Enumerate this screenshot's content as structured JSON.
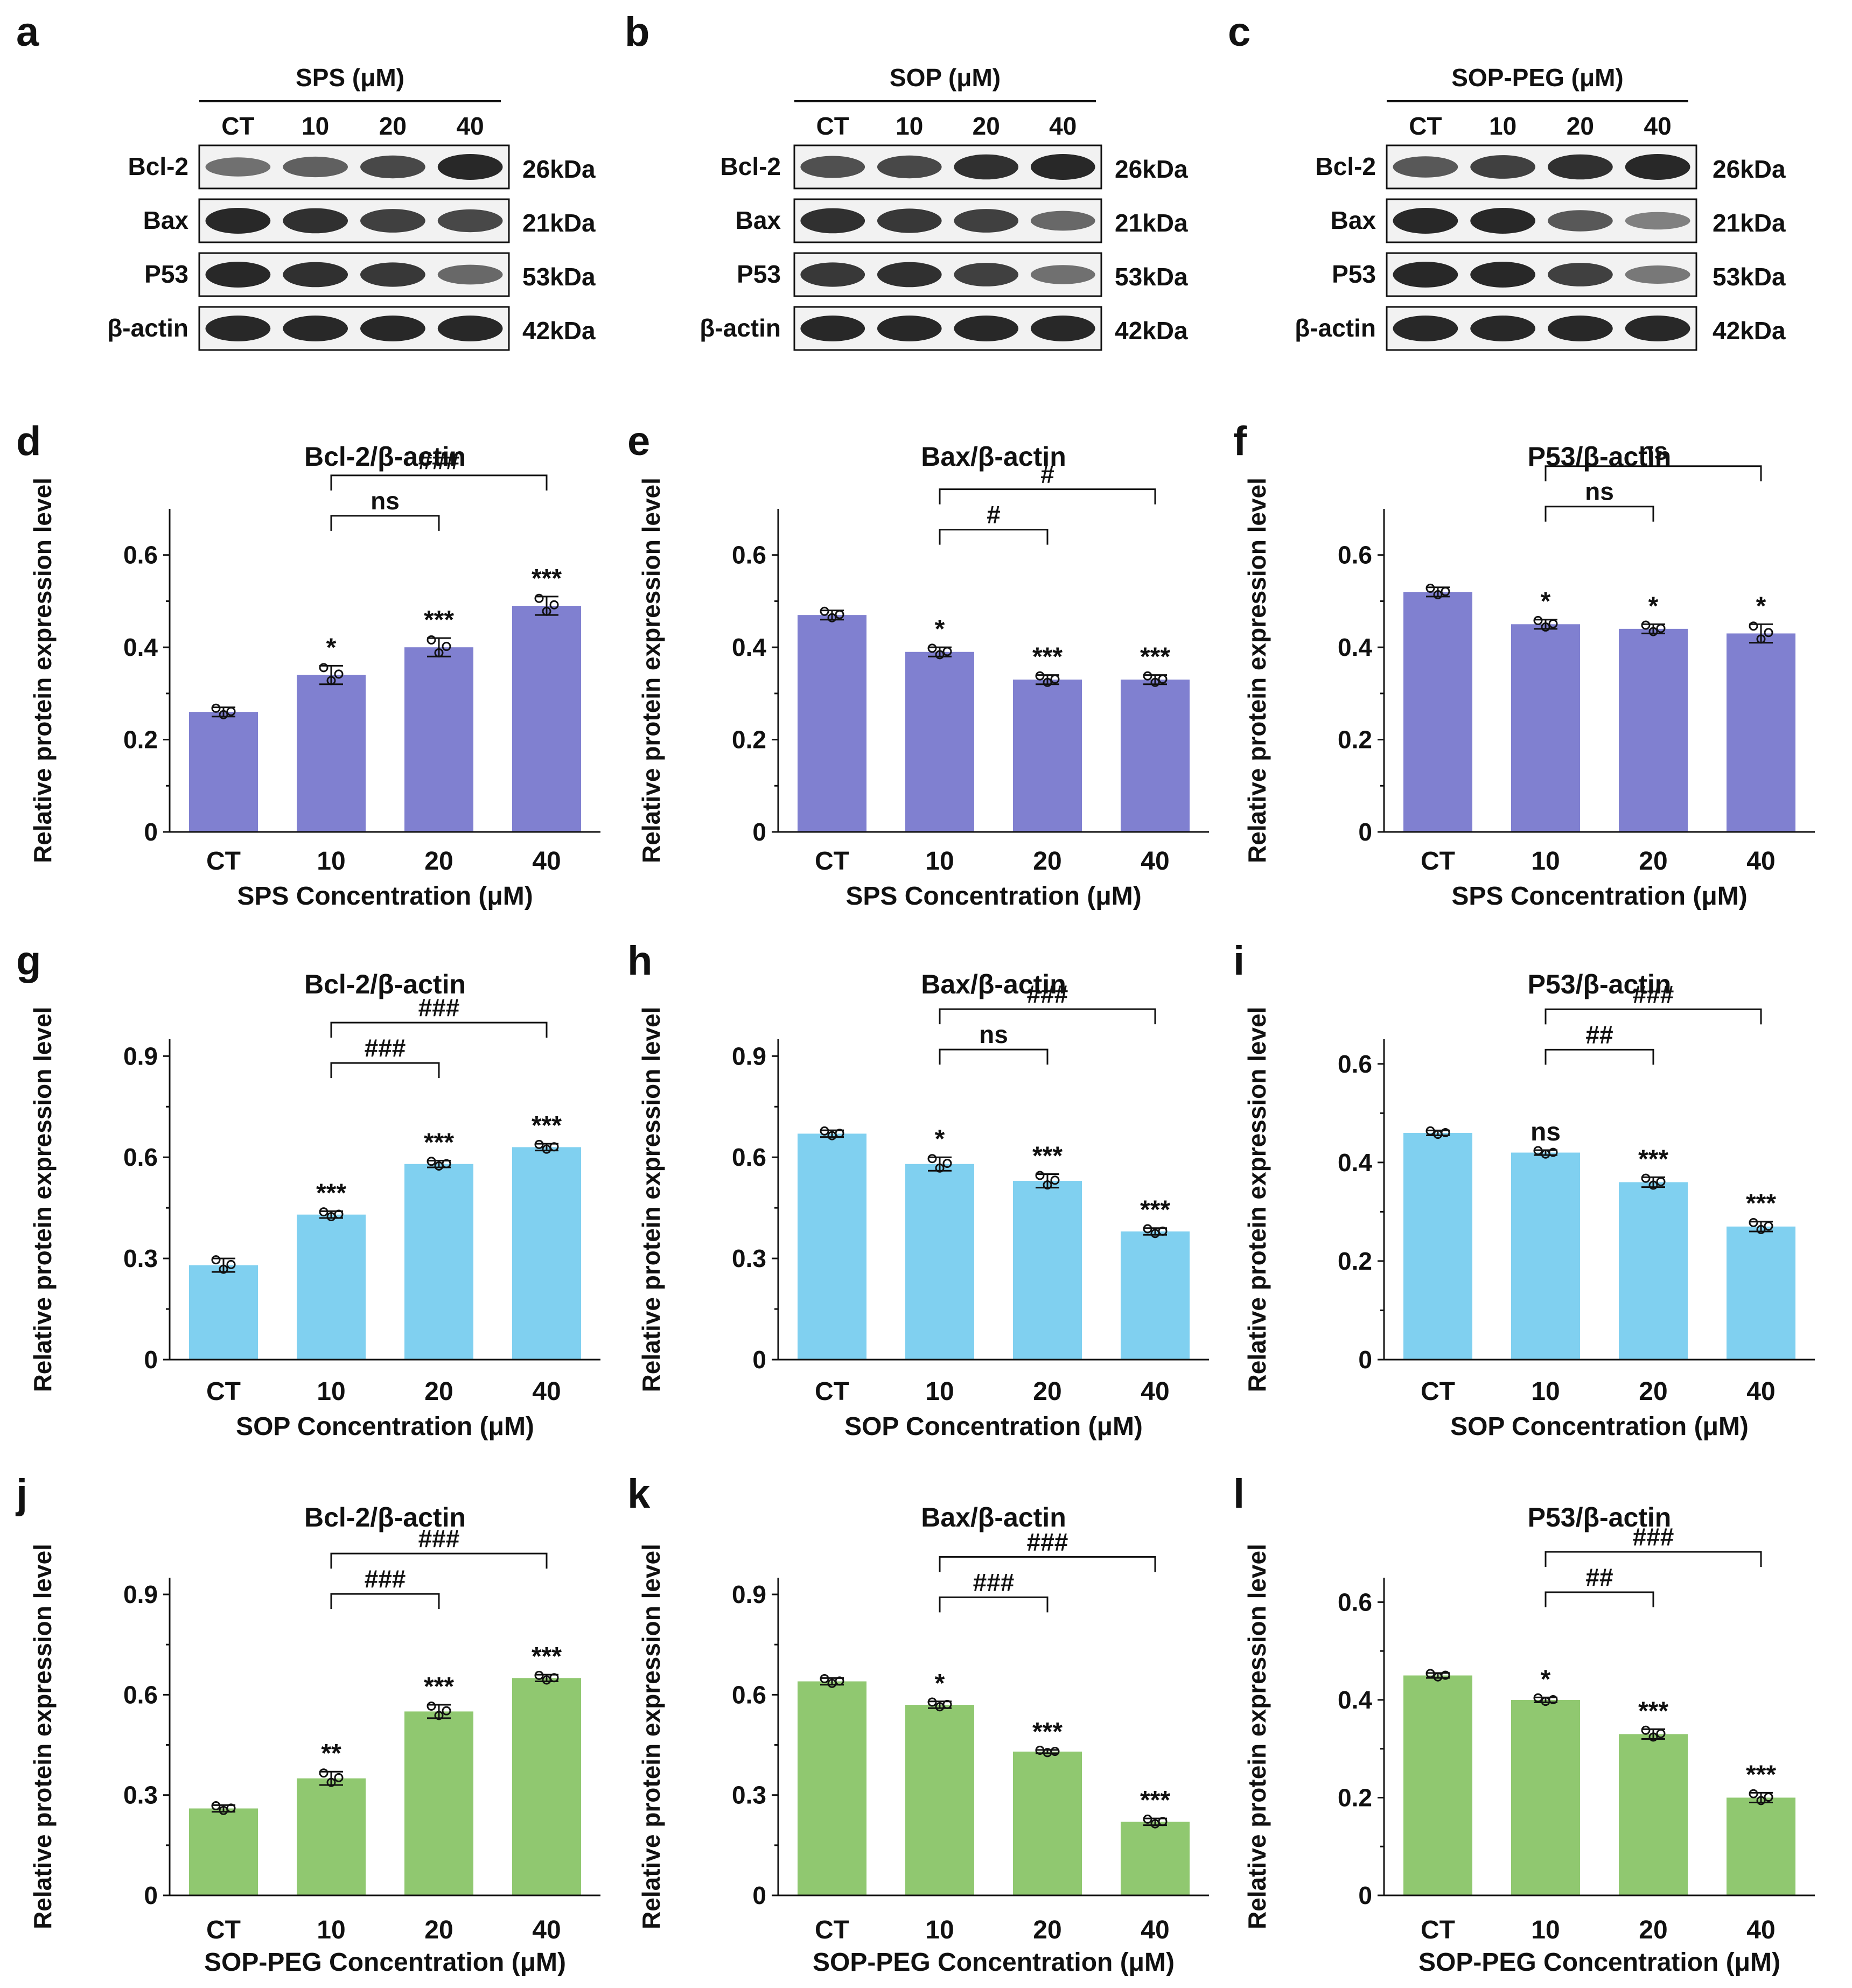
{
  "blot_panels": [
    {
      "letter": "a",
      "title": "SPS (μM)",
      "lanes": [
        "CT",
        "10",
        "20",
        "40"
      ],
      "proteins": [
        "Bcl-2",
        "Bax",
        "P53",
        "β-actin"
      ],
      "sizes": [
        "26kDa",
        "21kDa",
        "53kDa",
        "42kDa"
      ],
      "band_intensity": [
        [
          0.55,
          0.65,
          0.8,
          1.0
        ],
        [
          1.0,
          0.95,
          0.85,
          0.8
        ],
        [
          1.0,
          0.95,
          0.9,
          0.6
        ],
        [
          1.0,
          1.0,
          1.0,
          1.0
        ]
      ]
    },
    {
      "letter": "b",
      "title": "SOP (μM)",
      "lanes": [
        "CT",
        "10",
        "20",
        "40"
      ],
      "proteins": [
        "Bcl-2",
        "Bax",
        "P53",
        "β-actin"
      ],
      "sizes": [
        "26kDa",
        "21kDa",
        "53kDa",
        "42kDa"
      ],
      "band_intensity": [
        [
          0.75,
          0.8,
          0.95,
          1.0
        ],
        [
          0.95,
          0.9,
          0.85,
          0.6
        ],
        [
          0.9,
          0.95,
          0.85,
          0.55
        ],
        [
          1.0,
          1.0,
          1.0,
          1.0
        ]
      ]
    },
    {
      "letter": "c",
      "title": "SOP-PEG (μM)",
      "lanes": [
        "CT",
        "10",
        "20",
        "40"
      ],
      "proteins": [
        "Bcl-2",
        "Bax",
        "P53",
        "β-actin"
      ],
      "sizes": [
        "26kDa",
        "21kDa",
        "53kDa",
        "42kDa"
      ],
      "band_intensity": [
        [
          0.7,
          0.85,
          0.95,
          1.0
        ],
        [
          1.0,
          1.0,
          0.7,
          0.45
        ],
        [
          1.0,
          1.0,
          0.85,
          0.5
        ],
        [
          1.0,
          1.0,
          1.0,
          1.0
        ]
      ]
    }
  ],
  "colors": {
    "SPS": "#8080d0",
    "SOP": "#80d0f0",
    "SOP-PEG": "#90c870"
  },
  "chart_data": [
    {
      "letter": "d",
      "type": "bar",
      "title": "Bcl-2/β-actin",
      "color_key": "SPS",
      "categories": [
        "CT",
        "10",
        "20",
        "40"
      ],
      "values": [
        0.26,
        0.34,
        0.4,
        0.49
      ],
      "errors": [
        0.01,
        0.02,
        0.02,
        0.02
      ],
      "ylim": [
        0,
        0.7
      ],
      "yticks": [
        "0",
        "0.2",
        "0.4",
        "0.6"
      ],
      "ytick_values": [
        0,
        0.2,
        0.4,
        0.6
      ],
      "xlabel": "SPS Concentration (μM)",
      "ylabel": "Relative protein expression level",
      "bar_marks": [
        "",
        "*",
        "***",
        "***"
      ],
      "brackets": [
        {
          "from": 1,
          "to": 2,
          "label": "ns",
          "level": 0
        },
        {
          "from": 1,
          "to": 3,
          "label": "###",
          "level": 1
        }
      ]
    },
    {
      "letter": "e",
      "type": "bar",
      "title": "Bax/β-actin",
      "color_key": "SPS",
      "categories": [
        "CT",
        "10",
        "20",
        "40"
      ],
      "values": [
        0.47,
        0.39,
        0.33,
        0.33
      ],
      "errors": [
        0.01,
        0.01,
        0.01,
        0.01
      ],
      "ylim": [
        0,
        0.7
      ],
      "yticks": [
        "0",
        "0.2",
        "0.4",
        "0.6"
      ],
      "ytick_values": [
        0,
        0.2,
        0.4,
        0.6
      ],
      "xlabel": "SPS Concentration (μM)",
      "ylabel": "Relative protein expression level",
      "bar_marks": [
        "",
        "*",
        "***",
        "***"
      ],
      "brackets": [
        {
          "from": 1,
          "to": 2,
          "label": "#",
          "level": 0
        },
        {
          "from": 1,
          "to": 3,
          "label": "#",
          "level": 1
        }
      ]
    },
    {
      "letter": "f",
      "type": "bar",
      "title": "P53/β-actin",
      "color_key": "SPS",
      "categories": [
        "CT",
        "10",
        "20",
        "40"
      ],
      "values": [
        0.52,
        0.45,
        0.44,
        0.43
      ],
      "errors": [
        0.01,
        0.01,
        0.01,
        0.02
      ],
      "ylim": [
        0,
        0.7
      ],
      "yticks": [
        "0",
        "0.2",
        "0.4",
        "0.6"
      ],
      "ytick_values": [
        0,
        0.2,
        0.4,
        0.6
      ],
      "xlabel": "SPS Concentration (μM)",
      "ylabel": "Relative protein expression level",
      "bar_marks": [
        "",
        "*",
        "*",
        "*"
      ],
      "brackets": [
        {
          "from": 1,
          "to": 2,
          "label": "ns",
          "level": 0
        },
        {
          "from": 1,
          "to": 3,
          "label": "ns",
          "level": 1
        }
      ]
    },
    {
      "letter": "g",
      "type": "bar",
      "title": "Bcl-2/β-actin",
      "color_key": "SOP",
      "categories": [
        "CT",
        "10",
        "20",
        "40"
      ],
      "values": [
        0.28,
        0.43,
        0.58,
        0.63
      ],
      "errors": [
        0.02,
        0.01,
        0.01,
        0.01
      ],
      "ylim": [
        0,
        0.95
      ],
      "yticks": [
        "0",
        "0.3",
        "0.6",
        "0.9"
      ],
      "ytick_values": [
        0,
        0.3,
        0.6,
        0.9
      ],
      "xlabel": "SOP Concentration (μM)",
      "ylabel": "Relative protein expression level",
      "bar_marks": [
        "",
        "***",
        "***",
        "***"
      ],
      "brackets": [
        {
          "from": 1,
          "to": 2,
          "label": "###",
          "level": 0
        },
        {
          "from": 1,
          "to": 3,
          "label": "###",
          "level": 1
        }
      ]
    },
    {
      "letter": "h",
      "type": "bar",
      "title": "Bax/β-actin",
      "color_key": "SOP",
      "categories": [
        "CT",
        "10",
        "20",
        "40"
      ],
      "values": [
        0.67,
        0.58,
        0.53,
        0.38
      ],
      "errors": [
        0.01,
        0.02,
        0.02,
        0.01
      ],
      "ylim": [
        0,
        0.95
      ],
      "yticks": [
        "0",
        "0.3",
        "0.6",
        "0.9"
      ],
      "ytick_values": [
        0,
        0.3,
        0.6,
        0.9
      ],
      "xlabel": "SOP Concentration (μM)",
      "ylabel": "Relative protein expression level",
      "bar_marks": [
        "",
        "*",
        "***",
        "***"
      ],
      "brackets": [
        {
          "from": 1,
          "to": 2,
          "label": "ns",
          "level": 0
        },
        {
          "from": 1,
          "to": 3,
          "label": "###",
          "level": 1
        }
      ]
    },
    {
      "letter": "i",
      "type": "bar",
      "title": "P53/β-actin",
      "color_key": "SOP",
      "categories": [
        "CT",
        "10",
        "20",
        "40"
      ],
      "values": [
        0.46,
        0.42,
        0.36,
        0.27
      ],
      "errors": [
        0.005,
        0.005,
        0.01,
        0.01
      ],
      "ylim": [
        0,
        0.65
      ],
      "yticks": [
        "0",
        "0.2",
        "0.4",
        "0.6"
      ],
      "ytick_values": [
        0,
        0.2,
        0.4,
        0.6
      ],
      "xlabel": "SOP Concentration (μM)",
      "ylabel": "Relative protein expression level",
      "bar_marks": [
        "",
        "ns",
        "***",
        "***"
      ],
      "brackets": [
        {
          "from": 1,
          "to": 2,
          "label": "##",
          "level": 0
        },
        {
          "from": 1,
          "to": 3,
          "label": "###",
          "level": 1
        }
      ]
    },
    {
      "letter": "j",
      "type": "bar",
      "title": "Bcl-2/β-actin",
      "color_key": "SOP-PEG",
      "categories": [
        "CT",
        "10",
        "20",
        "40"
      ],
      "values": [
        0.26,
        0.35,
        0.55,
        0.65
      ],
      "errors": [
        0.01,
        0.02,
        0.02,
        0.01
      ],
      "ylim": [
        0,
        0.95
      ],
      "yticks": [
        "0",
        "0.3",
        "0.6",
        "0.9"
      ],
      "ytick_values": [
        0,
        0.3,
        0.6,
        0.9
      ],
      "xlabel": "SOP-PEG Concentration (μM)",
      "ylabel": "Relative protein expression level",
      "bar_marks": [
        "",
        "**",
        "***",
        "***"
      ],
      "brackets": [
        {
          "from": 1,
          "to": 2,
          "label": "###",
          "level": 0
        },
        {
          "from": 1,
          "to": 3,
          "label": "###",
          "level": 1
        }
      ]
    },
    {
      "letter": "k",
      "type": "bar",
      "title": "Bax/β-actin",
      "color_key": "SOP-PEG",
      "categories": [
        "CT",
        "10",
        "20",
        "40"
      ],
      "values": [
        0.64,
        0.57,
        0.43,
        0.22
      ],
      "errors": [
        0.01,
        0.01,
        0.005,
        0.01
      ],
      "ylim": [
        0,
        0.95
      ],
      "yticks": [
        "0",
        "0.3",
        "0.6",
        "0.9"
      ],
      "ytick_values": [
        0,
        0.3,
        0.6,
        0.9
      ],
      "xlabel": "SOP-PEG Concentration (μM)",
      "ylabel": "Relative protein expression level",
      "bar_marks": [
        "",
        "*",
        "***",
        "***"
      ],
      "brackets": [
        {
          "from": 1,
          "to": 2,
          "label": "###",
          "level": 0
        },
        {
          "from": 1,
          "to": 3,
          "label": "###",
          "level": 1
        }
      ]
    },
    {
      "letter": "l",
      "type": "bar",
      "title": "P53/β-actin",
      "color_key": "SOP-PEG",
      "categories": [
        "CT",
        "10",
        "20",
        "40"
      ],
      "values": [
        0.45,
        0.4,
        0.33,
        0.2
      ],
      "errors": [
        0.005,
        0.005,
        0.01,
        0.01
      ],
      "ylim": [
        0,
        0.65
      ],
      "yticks": [
        "0",
        "0.2",
        "0.4",
        "0.6"
      ],
      "ytick_values": [
        0,
        0.2,
        0.4,
        0.6
      ],
      "xlabel": "SOP-PEG Concentration (μM)",
      "ylabel": "Relative protein expression level",
      "bar_marks": [
        "",
        "*",
        "***",
        "***"
      ],
      "brackets": [
        {
          "from": 1,
          "to": 2,
          "label": "##",
          "level": 0
        },
        {
          "from": 1,
          "to": 3,
          "label": "###",
          "level": 1
        }
      ]
    }
  ]
}
